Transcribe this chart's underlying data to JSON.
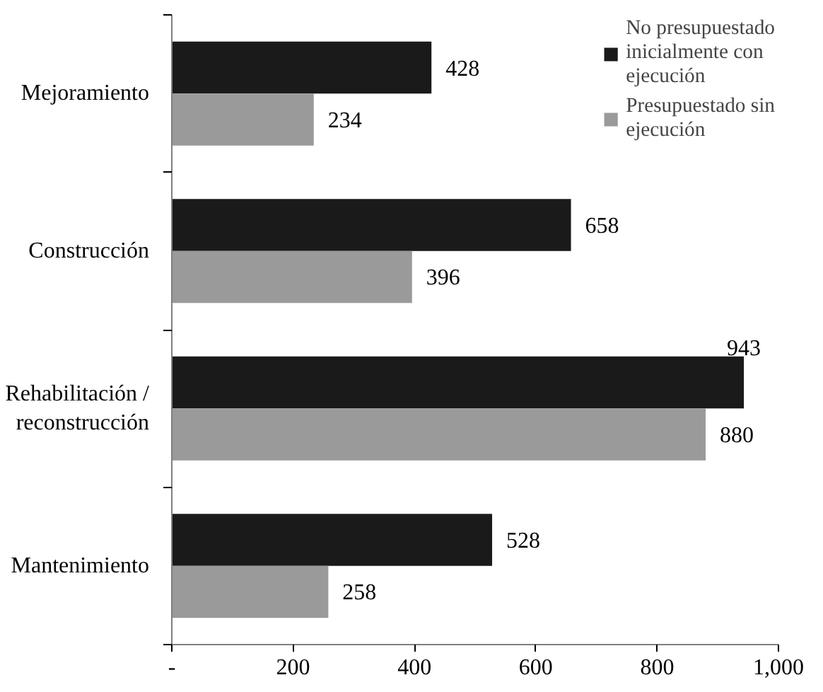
{
  "chart_data": {
    "type": "bar",
    "orientation": "horizontal",
    "categories": [
      "Mejoramiento",
      "Construcción",
      "Rehabilitación / reconstrucción",
      "Mantenimiento"
    ],
    "series": [
      {
        "name": "No presupuestado inicialmente con ejecución",
        "color": "#1a1a1a",
        "values": [
          428,
          658,
          943,
          528
        ]
      },
      {
        "name": "Presupuestado sin ejecución",
        "color": "#9a9a9a",
        "values": [
          234,
          396,
          880,
          258
        ]
      }
    ],
    "xlim": [
      0,
      1000
    ],
    "xticks": [
      {
        "value": 0,
        "label": "-"
      },
      200,
      400,
      600,
      800,
      {
        "value": 1000,
        "label": "1,000"
      }
    ],
    "data_labels": true,
    "grid": false,
    "legend": "top right"
  }
}
